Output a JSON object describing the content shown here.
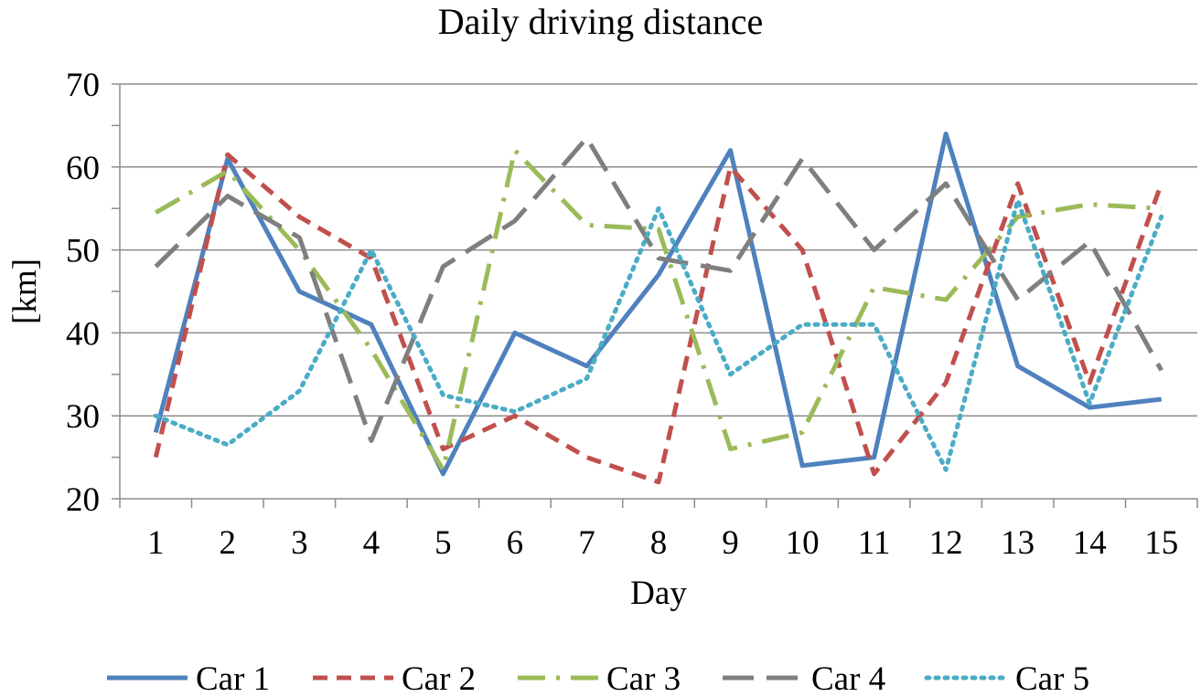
{
  "chart_data": {
    "type": "line",
    "title": "Daily driving distance",
    "xlabel": "Day",
    "ylabel": "[km]",
    "x": [
      1,
      2,
      3,
      4,
      5,
      6,
      7,
      8,
      9,
      10,
      11,
      12,
      13,
      14,
      15
    ],
    "ylim": [
      20,
      70
    ],
    "yticks": [
      20,
      30,
      40,
      50,
      60,
      70
    ],
    "grid": "horizontal",
    "legend": "bottom",
    "series": [
      {
        "name": "Car 1",
        "color": "#4F81BD",
        "dash": "solid",
        "values": [
          28,
          61,
          45,
          41,
          23,
          40,
          36,
          47,
          62,
          24,
          25,
          64,
          36,
          31,
          32
        ]
      },
      {
        "name": "Car 2",
        "color": "#C0504D",
        "dash": "dash",
        "values": [
          25,
          61.5,
          54,
          49,
          26,
          30,
          25,
          22,
          60,
          50,
          23,
          34,
          58,
          34,
          58
        ]
      },
      {
        "name": "Car 3",
        "color": "#9BBB59",
        "dash": "long-dash-dot",
        "values": [
          54.5,
          59.5,
          50,
          38,
          23.5,
          62,
          53,
          52.5,
          26,
          28,
          45.5,
          44,
          54,
          55.5,
          55
        ]
      },
      {
        "name": "Car 4",
        "color": "#7F7F7F",
        "dash": "long-dash",
        "values": [
          48,
          56.5,
          51.5,
          27,
          48,
          53.5,
          63.5,
          49,
          47.5,
          61,
          50,
          58,
          44,
          51,
          35.5
        ]
      },
      {
        "name": "Car 5",
        "color": "#4BACC6",
        "dash": "dot",
        "values": [
          30,
          26.5,
          33,
          50,
          32.5,
          30.5,
          34.5,
          55,
          35,
          41,
          41,
          23.5,
          56,
          31.5,
          54
        ]
      }
    ]
  }
}
